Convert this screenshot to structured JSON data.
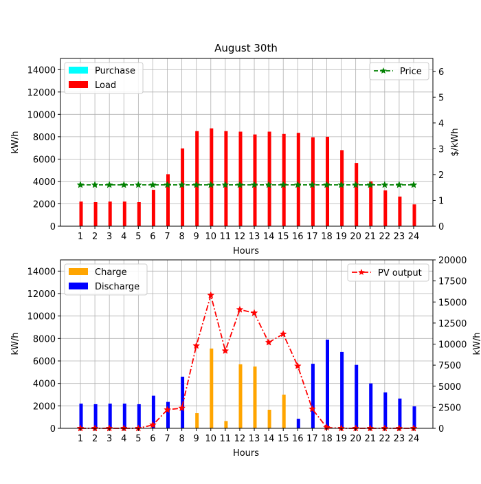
{
  "chart_data": [
    {
      "type": "bar",
      "title": "August 30th",
      "xlabel": "Hours",
      "ylabel": "kW/h",
      "ylabel_right": "$/kWh",
      "ylim": [
        0,
        15000
      ],
      "ylim_right": [
        0,
        6.5
      ],
      "yticks": [
        "0",
        "2000",
        "4000",
        "6000",
        "8000",
        "10000",
        "12000",
        "14000"
      ],
      "yticks_right": [
        "0",
        "1",
        "2",
        "3",
        "4",
        "5",
        "6"
      ],
      "categories": [
        "1",
        "2",
        "3",
        "4",
        "5",
        "6",
        "7",
        "8",
        "9",
        "10",
        "11",
        "12",
        "13",
        "14",
        "15",
        "16",
        "17",
        "18",
        "19",
        "20",
        "21",
        "22",
        "23",
        "24"
      ],
      "grid": true,
      "series": [
        {
          "name": "Purchase",
          "type": "bar",
          "color": "#00ffff",
          "values": [
            0,
            0,
            0,
            0,
            0,
            0,
            0,
            0,
            0,
            0,
            0,
            0,
            0,
            0,
            0,
            0,
            0,
            0,
            0,
            0,
            0,
            0,
            0,
            0
          ]
        },
        {
          "name": "Load",
          "type": "bar",
          "color": "#ff0000",
          "values": [
            2200,
            2150,
            2200,
            2200,
            2150,
            3250,
            4650,
            6950,
            8500,
            8750,
            8500,
            8450,
            8200,
            8450,
            8250,
            8350,
            7950,
            8000,
            6800,
            5650,
            4000,
            3200,
            2650,
            1950
          ]
        },
        {
          "name": "Price",
          "type": "line",
          "axis": "right",
          "color": "#008000",
          "marker": "star",
          "linestyle": "dashed",
          "values": [
            1.6,
            1.6,
            1.6,
            1.6,
            1.6,
            1.6,
            1.6,
            1.6,
            1.6,
            1.6,
            1.6,
            1.6,
            1.6,
            1.6,
            1.6,
            1.6,
            1.6,
            1.6,
            1.6,
            1.6,
            1.6,
            1.6,
            1.6,
            1.6
          ]
        }
      ],
      "legend_left": "upper-left",
      "legend_right": "upper-right"
    },
    {
      "type": "bar",
      "xlabel": "Hours",
      "ylabel": "kW/h",
      "ylabel_right": "kW/h",
      "ylim": [
        0,
        15000
      ],
      "ylim_right": [
        0,
        20000
      ],
      "yticks": [
        "0",
        "2000",
        "4000",
        "6000",
        "8000",
        "10000",
        "12000",
        "14000"
      ],
      "yticks_right": [
        "0",
        "2500",
        "5000",
        "7500",
        "10000",
        "12500",
        "15000",
        "17500",
        "20000"
      ],
      "categories": [
        "1",
        "2",
        "3",
        "4",
        "5",
        "6",
        "7",
        "8",
        "9",
        "10",
        "11",
        "12",
        "13",
        "14",
        "15",
        "16",
        "17",
        "18",
        "19",
        "20",
        "21",
        "22",
        "23",
        "24"
      ],
      "grid": true,
      "series": [
        {
          "name": "Charge",
          "type": "bar",
          "color": "#ffa500",
          "values": [
            0,
            0,
            0,
            0,
            0,
            0,
            0,
            0,
            1350,
            7100,
            650,
            5700,
            5500,
            1650,
            3000,
            0,
            0,
            0,
            0,
            0,
            0,
            0,
            0,
            0
          ]
        },
        {
          "name": "Discharge",
          "type": "bar",
          "color": "#0000ff",
          "values": [
            2200,
            2150,
            2200,
            2200,
            2150,
            2900,
            2350,
            4600,
            0,
            0,
            0,
            0,
            0,
            0,
            0,
            850,
            5750,
            7900,
            6800,
            5650,
            4000,
            3200,
            2650,
            1950
          ]
        },
        {
          "name": "PV output",
          "type": "line",
          "axis": "right",
          "color": "#ff0000",
          "marker": "star",
          "linestyle": "dashdot",
          "values": [
            0,
            0,
            0,
            0,
            0,
            400,
            2200,
            2400,
            9800,
            15800,
            9200,
            14100,
            13700,
            10200,
            11200,
            7400,
            2300,
            100,
            0,
            0,
            0,
            0,
            0,
            0
          ]
        }
      ],
      "legend_left": "upper-left",
      "legend_right": "upper-right"
    }
  ]
}
